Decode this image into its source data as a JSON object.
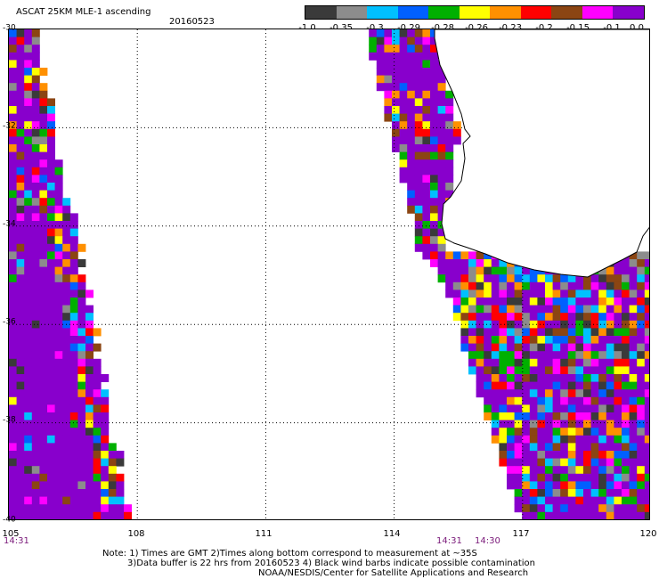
{
  "header": {
    "title": "ASCAT 25KM MLE-1 ascending",
    "date": "20160523"
  },
  "legend": {
    "labels": [
      "-1.0",
      "-0.35",
      "-0.3",
      "-0.29",
      "-0.28",
      "-0.26",
      "-0.23",
      "-0.2",
      "-0.15",
      "-0.1",
      "0.0"
    ],
    "colors": [
      "#3a3a3a",
      "#8c8c8c",
      "#00c0ff",
      "#0060ff",
      "#00b000",
      "#ffff00",
      "#ff9000",
      "#ff0000",
      "#8b4513",
      "#ff00ff",
      "#8800cc"
    ]
  },
  "axes": {
    "x_ticks": [
      "105",
      "108",
      "111",
      "114",
      "117",
      "120"
    ],
    "y_ticks": [
      "-30",
      "-32",
      "-34",
      "-36",
      "-38",
      "-40"
    ]
  },
  "times": {
    "left": "14:31",
    "mid1": "14:31",
    "mid2": "14:30"
  },
  "notes": {
    "line1": "Note: 1) Times are GMT 2)Times along bottom correspond to measurement at ~35S",
    "line2": "3)Data buffer is 22 hrs from 20160523 4) Black wind barbs indicate possible contamination",
    "line3": "NOAA/NESDIS/Center for Satellite Applications and Research"
  },
  "palette": {
    "purple": "#8800cc",
    "magenta": "#ff00ff",
    "red": "#ff0000",
    "orange": "#ff9000",
    "yellow": "#ffff00",
    "green": "#00b000",
    "blue": "#0060ff",
    "cyan": "#00c0ff",
    "brown": "#8b4513",
    "gray": "#8c8c8c",
    "dark": "#3a3a3a"
  }
}
